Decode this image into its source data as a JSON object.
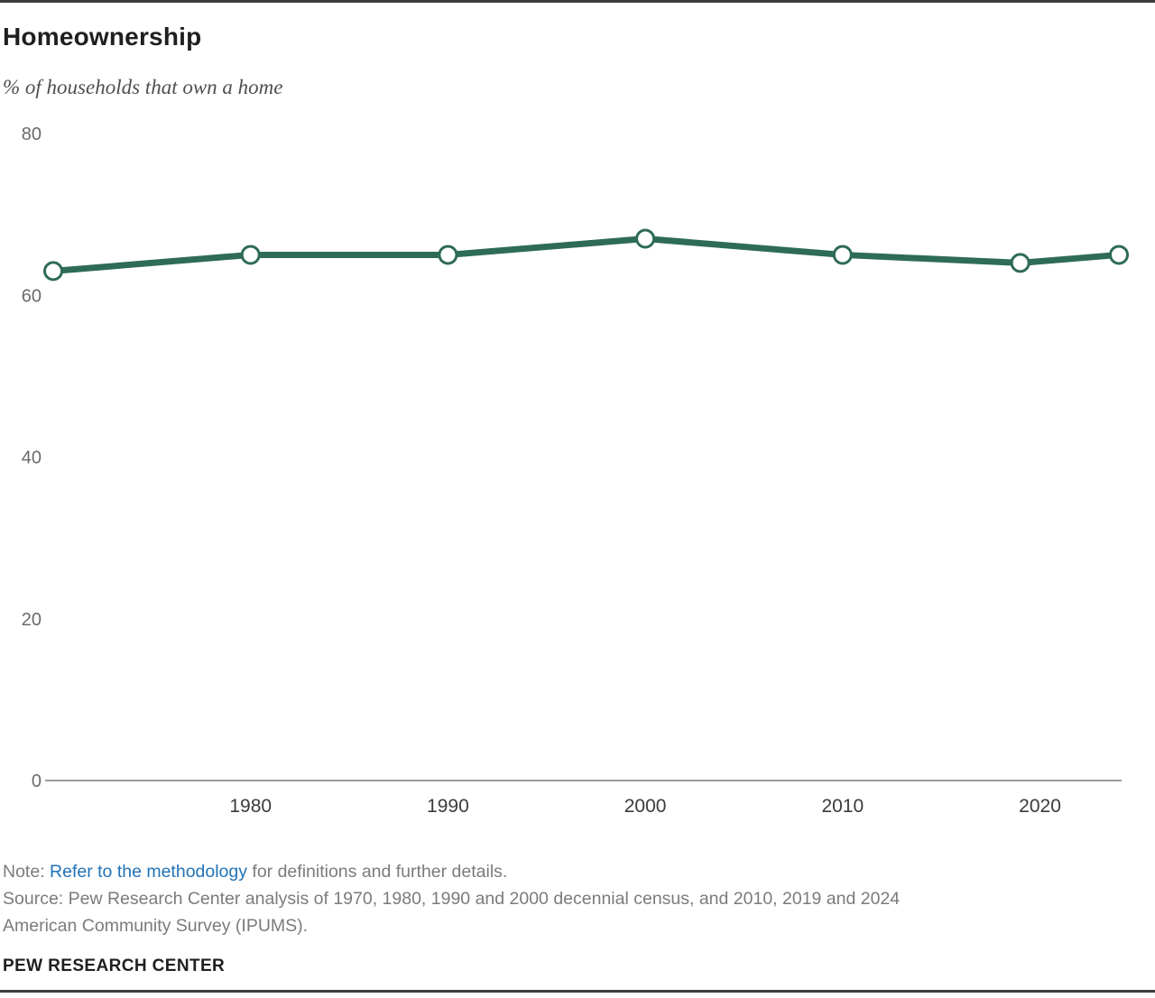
{
  "header": {
    "title": "Homeownership",
    "subtitle": "% of households that own a home"
  },
  "chart_data": {
    "type": "line",
    "title": "Homeownership",
    "subtitle": "% of households that own a home",
    "x": [
      1970,
      1980,
      1990,
      2000,
      2010,
      2019,
      2024
    ],
    "series": [
      {
        "name": "% of households that own a home",
        "values": [
          63,
          65,
          65,
          67,
          65,
          64,
          65
        ]
      }
    ],
    "xlim": [
      1970,
      2024
    ],
    "ylim": [
      0,
      80
    ],
    "x_tick_labels": [
      "1980",
      "1990",
      "2000",
      "2010",
      "2020"
    ],
    "x_tick_values": [
      1980,
      1990,
      2000,
      2010,
      2020
    ],
    "y_tick_labels": [
      "0",
      "20",
      "40",
      "60",
      "80"
    ],
    "y_tick_values": [
      0,
      20,
      40,
      60,
      80
    ],
    "grid": false,
    "legend": "none",
    "line_color": "#2e6b58",
    "marker": "open-circle",
    "marker_fill": "#ffffff",
    "axis_color": "#7a7a7a",
    "x_tick_color": "#3b3b3b",
    "y_tick_color": "#6b6b6b"
  },
  "notes": {
    "note_prefix": "Note: ",
    "note_link": "Refer to the methodology",
    "note_suffix": " for definitions and further details.",
    "source": "Source: Pew Research Center analysis of 1970, 1980, 1990 and 2000 decennial census, and 2010, 2019 and 2024 American Community Survey (IPUMS)."
  },
  "footer": {
    "brand": "PEW RESEARCH CENTER"
  },
  "colors": {
    "rule": "#3d3d3d",
    "link": "#2272b5",
    "line": "#2e6b58"
  }
}
